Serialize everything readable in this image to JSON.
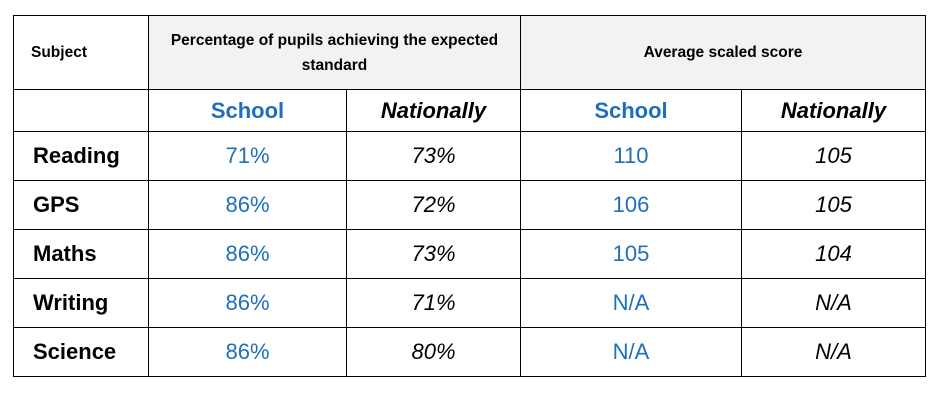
{
  "header": {
    "subject_label": "Subject",
    "percentage_label": "Percentage of pupils achieving the expected standard",
    "score_label": "Average scaled score",
    "school_label": "School",
    "national_label": "Nationally"
  },
  "rows": [
    {
      "subject": "Reading",
      "pct_school": "71%",
      "pct_national": "73%",
      "score_school": "110",
      "score_national": "105"
    },
    {
      "subject": "GPS",
      "pct_school": "86%",
      "pct_national": "72%",
      "score_school": "106",
      "score_national": "105"
    },
    {
      "subject": "Maths",
      "pct_school": "86%",
      "pct_national": "73%",
      "score_school": "105",
      "score_national": "104"
    },
    {
      "subject": "Writing",
      "pct_school": "86%",
      "pct_national": "71%",
      "score_school": "N/A",
      "score_national": "N/A"
    },
    {
      "subject": "Science",
      "pct_school": "86%",
      "pct_national": "80%",
      "score_school": "N/A",
      "score_national": "N/A"
    }
  ],
  "colors": {
    "school_text": "#1f6fbf",
    "header_bg": "#f2f2f2",
    "border": "#000000"
  }
}
